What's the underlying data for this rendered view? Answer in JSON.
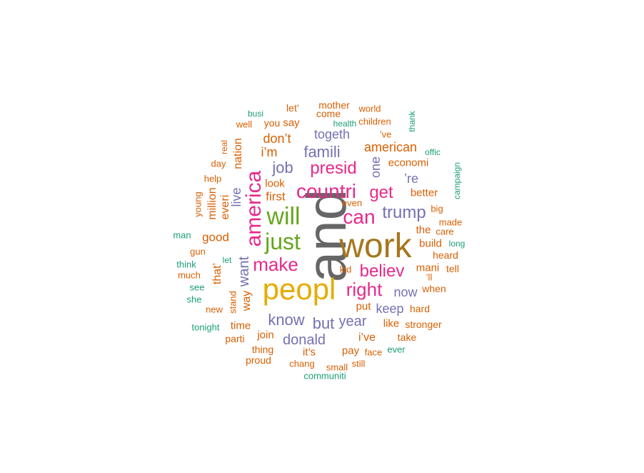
{
  "palette": {
    "teal": "#1b9e77",
    "orange": "#d95f02",
    "purple": "#7570b3",
    "pink": "#e7298a",
    "green": "#66a61e",
    "gold": "#e6ab02",
    "brown": "#a6761d",
    "gray": "#666666"
  },
  "words": [
    {
      "text": "and",
      "color": "gray",
      "vertical": true
    },
    {
      "text": "work",
      "color": "brown"
    },
    {
      "text": "peopl",
      "color": "gold"
    },
    {
      "text": "will",
      "color": "green"
    },
    {
      "text": "just",
      "color": "green"
    },
    {
      "text": "america",
      "color": "pink",
      "vertical": true
    },
    {
      "text": "countri",
      "color": "pink"
    },
    {
      "text": "can",
      "color": "pink"
    },
    {
      "text": "make",
      "color": "pink"
    },
    {
      "text": "right",
      "color": "pink"
    },
    {
      "text": "believ",
      "color": "pink"
    },
    {
      "text": "presid",
      "color": "pink"
    },
    {
      "text": "get",
      "color": "pink"
    },
    {
      "text": "trump",
      "color": "purple"
    },
    {
      "text": "famili",
      "color": "purple"
    },
    {
      "text": "job",
      "color": "purple"
    },
    {
      "text": "know",
      "color": "purple"
    },
    {
      "text": "donald",
      "color": "purple"
    },
    {
      "text": "but",
      "color": "purple"
    },
    {
      "text": "year",
      "color": "purple"
    },
    {
      "text": "keep",
      "color": "purple"
    },
    {
      "text": "now",
      "color": "purple"
    },
    {
      "text": "togeth",
      "color": "purple"
    },
    {
      "text": "one",
      "color": "purple",
      "vertical": true
    },
    {
      "text": "’re",
      "color": "purple"
    },
    {
      "text": "want",
      "color": "purple",
      "vertical": true
    },
    {
      "text": "live",
      "color": "purple",
      "vertical": true
    },
    {
      "text": "american",
      "color": "orange"
    },
    {
      "text": "i’m",
      "color": "orange"
    },
    {
      "text": "don’t",
      "color": "orange"
    },
    {
      "text": "nation",
      "color": "orange",
      "vertical": true
    },
    {
      "text": "good",
      "color": "orange"
    },
    {
      "text": "million",
      "color": "orange",
      "vertical": true
    },
    {
      "text": "everi",
      "color": "orange",
      "vertical": true
    },
    {
      "text": "first",
      "color": "orange"
    },
    {
      "text": "look",
      "color": "orange"
    },
    {
      "text": "economi",
      "color": "orange"
    },
    {
      "text": "better",
      "color": "orange"
    },
    {
      "text": "the",
      "color": "orange"
    },
    {
      "text": "build",
      "color": "orange"
    },
    {
      "text": "mani",
      "color": "orange"
    },
    {
      "text": "that’",
      "color": "orange",
      "vertical": true
    },
    {
      "text": "way",
      "color": "orange",
      "vertical": true
    },
    {
      "text": "time",
      "color": "orange"
    },
    {
      "text": "join",
      "color": "orange"
    },
    {
      "text": "i’ve",
      "color": "orange"
    },
    {
      "text": "it’s",
      "color": "orange"
    },
    {
      "text": "pay",
      "color": "orange"
    },
    {
      "text": "put",
      "color": "orange"
    },
    {
      "text": "like",
      "color": "orange"
    },
    {
      "text": "stronger",
      "color": "orange"
    },
    {
      "text": "take",
      "color": "orange"
    },
    {
      "text": "face",
      "color": "orange"
    },
    {
      "text": "hard",
      "color": "orange"
    },
    {
      "text": "when",
      "color": "orange"
    },
    {
      "text": "’ll",
      "color": "orange"
    },
    {
      "text": "tell",
      "color": "orange"
    },
    {
      "text": "heard",
      "color": "orange"
    },
    {
      "text": "care",
      "color": "orange"
    },
    {
      "text": "made",
      "color": "orange"
    },
    {
      "text": "big",
      "color": "orange"
    },
    {
      "text": "even",
      "color": "orange"
    },
    {
      "text": "kid",
      "color": "orange"
    },
    {
      "text": "thing",
      "color": "orange"
    },
    {
      "text": "proud",
      "color": "orange"
    },
    {
      "text": "chang",
      "color": "orange"
    },
    {
      "text": "small",
      "color": "orange"
    },
    {
      "text": "still",
      "color": "orange"
    },
    {
      "text": "parti",
      "color": "orange"
    },
    {
      "text": "stand",
      "color": "orange",
      "vertical": true
    },
    {
      "text": "new",
      "color": "orange"
    },
    {
      "text": "much",
      "color": "orange"
    },
    {
      "text": "gun",
      "color": "orange"
    },
    {
      "text": "help",
      "color": "orange"
    },
    {
      "text": "day",
      "color": "orange"
    },
    {
      "text": "real",
      "color": "orange",
      "vertical": true
    },
    {
      "text": "young",
      "color": "orange",
      "vertical": true
    },
    {
      "text": "well",
      "color": "orange"
    },
    {
      "text": "you",
      "color": "orange"
    },
    {
      "text": "say",
      "color": "orange"
    },
    {
      "text": "let’",
      "color": "orange"
    },
    {
      "text": "mother",
      "color": "orange"
    },
    {
      "text": "come",
      "color": "orange"
    },
    {
      "text": "world",
      "color": "orange"
    },
    {
      "text": "children",
      "color": "orange"
    },
    {
      "text": "’ve",
      "color": "orange"
    },
    {
      "text": "busi",
      "color": "teal"
    },
    {
      "text": "health",
      "color": "teal"
    },
    {
      "text": "thank",
      "color": "teal",
      "vertical": true
    },
    {
      "text": "offic",
      "color": "teal"
    },
    {
      "text": "campaign",
      "color": "teal",
      "vertical": true
    },
    {
      "text": "long",
      "color": "teal"
    },
    {
      "text": "ever",
      "color": "teal"
    },
    {
      "text": "communiti",
      "color": "teal"
    },
    {
      "text": "tonight",
      "color": "teal"
    },
    {
      "text": "she",
      "color": "teal"
    },
    {
      "text": "see",
      "color": "teal"
    },
    {
      "text": "think",
      "color": "teal"
    },
    {
      "text": "let",
      "color": "teal"
    },
    {
      "text": "man",
      "color": "teal"
    }
  ]
}
